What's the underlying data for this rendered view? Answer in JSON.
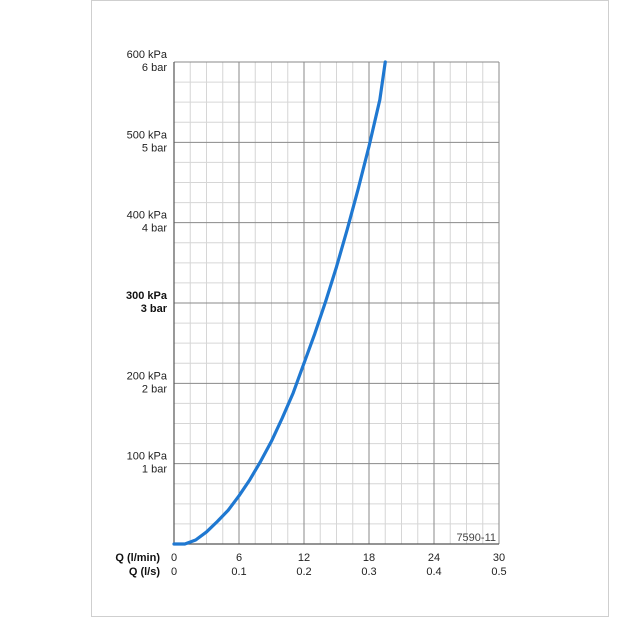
{
  "chart_data": {
    "type": "line",
    "reference": "7590-11",
    "x_axis": {
      "primary_label": "Q (l/min)",
      "primary_ticks": [
        "0",
        "6",
        "12",
        "18",
        "24",
        "30"
      ],
      "secondary_label": "Q (l/s)",
      "secondary_ticks": [
        "0",
        "0.1",
        "0.2",
        "0.3",
        "0.4",
        "0.5"
      ],
      "range": [
        0,
        30
      ]
    },
    "y_axis": {
      "range": [
        0,
        600
      ],
      "unit": "kPa",
      "ticks": [
        {
          "value": 100,
          "kpa": "100 kPa",
          "bar": "1 bar",
          "bold": false
        },
        {
          "value": 200,
          "kpa": "200 kPa",
          "bar": "2 bar",
          "bold": false
        },
        {
          "value": 300,
          "kpa": "300 kPa",
          "bar": "3 bar",
          "bold": true
        },
        {
          "value": 400,
          "kpa": "400 kPa",
          "bar": "4 bar",
          "bold": false
        },
        {
          "value": 500,
          "kpa": "500 kPa",
          "bar": "5 bar",
          "bold": false
        },
        {
          "value": 600,
          "kpa": "600 kPa",
          "bar": "6 bar",
          "bold": false
        }
      ]
    },
    "grid": true,
    "series": [
      {
        "color": "#1f78d1",
        "x": [
          0,
          1,
          2,
          3,
          4,
          5,
          6,
          7,
          8,
          9,
          10,
          11,
          12,
          13,
          14,
          15,
          16,
          17,
          18,
          19,
          19.5
        ],
        "y": [
          0,
          0,
          5,
          15,
          28,
          42,
          60,
          80,
          103,
          128,
          157,
          188,
          225,
          262,
          302,
          345,
          392,
          442,
          495,
          553,
          600
        ]
      }
    ]
  }
}
